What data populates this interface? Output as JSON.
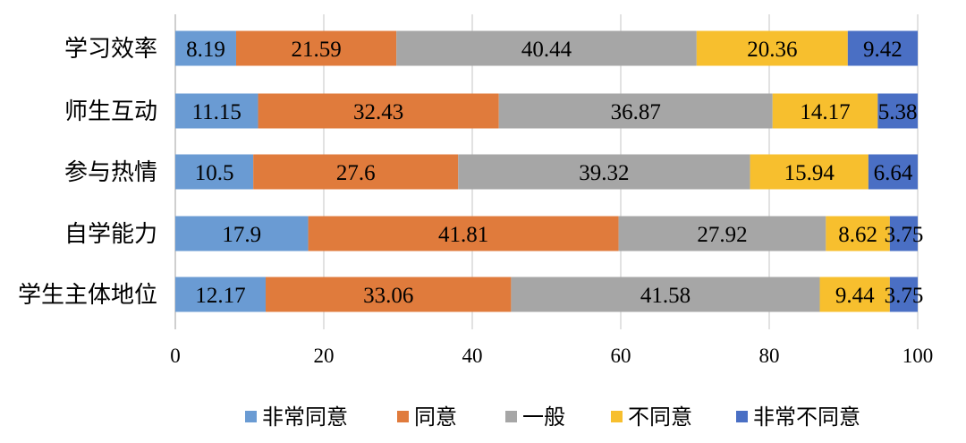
{
  "chart_data": {
    "type": "bar",
    "orientation": "horizontal",
    "stacked": true,
    "categories": [
      "学习效率",
      "师生互动",
      "参与热情",
      "自学能力",
      "学生主体地位"
    ],
    "series": [
      {
        "name": "非常同意",
        "color": "#6a9bd3",
        "values": [
          8.19,
          11.15,
          10.5,
          17.9,
          12.17
        ]
      },
      {
        "name": "同意",
        "color": "#e07b3c",
        "values": [
          21.59,
          32.43,
          27.6,
          41.81,
          33.06
        ]
      },
      {
        "name": "一般",
        "color": "#a6a6a6",
        "values": [
          40.44,
          36.87,
          39.32,
          27.92,
          41.58
        ]
      },
      {
        "name": "不同意",
        "color": "#f7bf2e",
        "values": [
          20.36,
          14.17,
          15.94,
          8.62,
          9.44
        ]
      },
      {
        "name": "非常不同意",
        "color": "#4a6fc4",
        "values": [
          9.42,
          5.38,
          6.64,
          3.75,
          3.75
        ]
      }
    ],
    "xlim": [
      0,
      100
    ],
    "xticks": [
      0,
      20,
      40,
      60,
      80,
      100
    ],
    "grid": true,
    "legend_position": "bottom",
    "title": "",
    "xlabel": "",
    "ylabel": ""
  }
}
